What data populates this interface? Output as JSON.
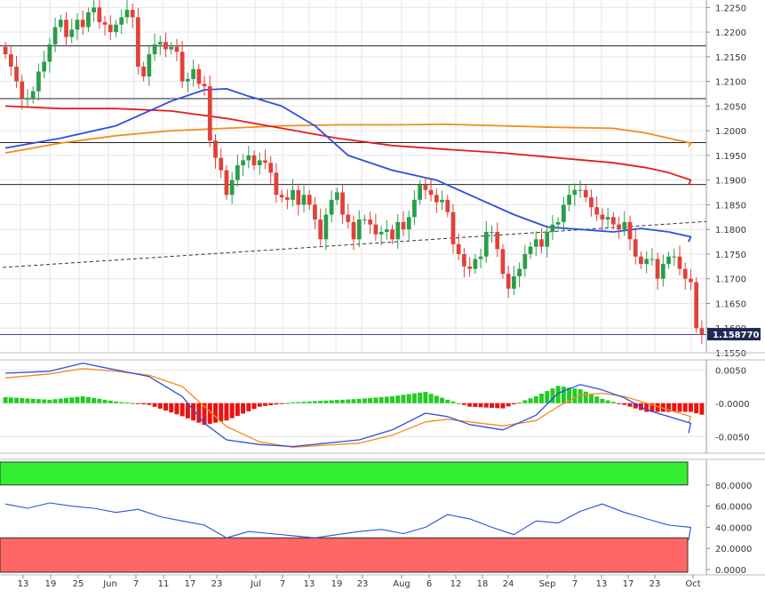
{
  "colors": {
    "bull": "#2a9d4a",
    "bear": "#e0413a",
    "sma_blue": "#2b4fe0",
    "sma_orange": "#f48c1d",
    "sma_red": "#e51c1c",
    "macd_blue": "#2b4fe0",
    "macd_signal": "#f48c1d",
    "hist_pos": "#22cc22",
    "hist_neg": "#ee1111",
    "rsi_line": "#2b4fe0",
    "ob_zone": "#33ee33",
    "os_zone": "#ff6666",
    "grid": "#e6e6e6"
  },
  "chart_data": [
    {
      "type": "candlestick",
      "price_axis": {
        "min": 1.155,
        "max": 1.2265,
        "ticks": [
          "1.2250",
          "1.2200",
          "1.2150",
          "1.2100",
          "1.2050",
          "1.2000",
          "1.1950",
          "1.1900",
          "1.1850",
          "1.1800",
          "1.1750",
          "1.1700",
          "1.1650",
          "1.1600",
          "1.1550"
        ]
      },
      "last_price": "1.158770",
      "horizontal_levels": [
        1.2172,
        1.2065,
        1.1976,
        1.1891,
        1.1587
      ],
      "trendline": {
        "x": [
          0,
          110
        ],
        "y": [
          1.1723,
          1.1816
        ],
        "style": "dashed"
      },
      "candles_close": [
        1.2155,
        1.213,
        1.21,
        1.2065,
        1.2065,
        1.208,
        1.212,
        1.214,
        1.2175,
        1.221,
        1.2225,
        1.219,
        1.2205,
        1.2225,
        1.221,
        1.224,
        1.225,
        1.222,
        1.2215,
        1.22,
        1.2215,
        1.223,
        1.2245,
        1.223,
        1.213,
        1.211,
        1.2155,
        1.2175,
        1.218,
        1.2165,
        1.217,
        1.216,
        1.21,
        1.2105,
        1.2125,
        1.2095,
        1.209,
        1.198,
        1.1945,
        1.192,
        1.187,
        1.19,
        1.193,
        1.194,
        1.195,
        1.193,
        1.194,
        1.1935,
        1.1915,
        1.187,
        1.1865,
        1.186,
        1.188,
        1.185,
        1.187,
        1.185,
        1.182,
        1.178,
        1.183,
        1.186,
        1.1875,
        1.183,
        1.1815,
        1.178,
        1.182,
        1.182,
        1.181,
        1.179,
        1.1795,
        1.18,
        1.178,
        1.1815,
        1.18,
        1.1825,
        1.186,
        1.189,
        1.188,
        1.187,
        1.1855,
        1.186,
        1.1835,
        1.177,
        1.175,
        1.1725,
        1.172,
        1.174,
        1.1745,
        1.1795,
        1.1795,
        1.176,
        1.171,
        1.168,
        1.1705,
        1.172,
        1.175,
        1.1765,
        1.178,
        1.1765,
        1.1795,
        1.181,
        1.1815,
        1.185,
        1.187,
        1.188,
        1.188,
        1.1865,
        1.1845,
        1.183,
        1.182,
        1.1825,
        1.181,
        1.18,
        1.1815,
        1.178,
        1.1745,
        1.173,
        1.174,
        1.174,
        1.17,
        1.173,
        1.1745,
        1.1745,
        1.172,
        1.17,
        1.1693,
        1.16,
        1.1587
      ],
      "candles_open": [
        1.217,
        1.2155,
        1.213,
        1.21,
        1.2065,
        1.2065,
        1.208,
        1.212,
        1.214,
        1.2175,
        1.221,
        1.2225,
        1.219,
        1.2205,
        1.2225,
        1.221,
        1.224,
        1.225,
        1.222,
        1.2215,
        1.22,
        1.2215,
        1.223,
        1.2245,
        1.223,
        1.213,
        1.211,
        1.2155,
        1.2175,
        1.218,
        1.2165,
        1.217,
        1.216,
        1.21,
        1.2105,
        1.2125,
        1.2095,
        1.209,
        1.198,
        1.1945,
        1.192,
        1.187,
        1.19,
        1.193,
        1.194,
        1.195,
        1.193,
        1.194,
        1.1935,
        1.1915,
        1.187,
        1.1865,
        1.186,
        1.188,
        1.185,
        1.187,
        1.185,
        1.182,
        1.178,
        1.183,
        1.186,
        1.1875,
        1.183,
        1.1815,
        1.178,
        1.182,
        1.182,
        1.181,
        1.179,
        1.1795,
        1.18,
        1.178,
        1.1815,
        1.18,
        1.1825,
        1.186,
        1.189,
        1.188,
        1.187,
        1.1855,
        1.186,
        1.1835,
        1.177,
        1.175,
        1.1725,
        1.172,
        1.174,
        1.1745,
        1.1795,
        1.1795,
        1.176,
        1.171,
        1.168,
        1.1705,
        1.172,
        1.175,
        1.1765,
        1.178,
        1.1765,
        1.1795,
        1.181,
        1.1815,
        1.185,
        1.187,
        1.188,
        1.188,
        1.1865,
        1.1845,
        1.183,
        1.182,
        1.1825,
        1.181,
        1.18,
        1.1815,
        1.178,
        1.1745,
        1.173,
        1.174,
        1.174,
        1.17,
        1.173,
        1.1745,
        1.1745,
        1.172,
        1.17,
        1.1693,
        1.16
      ],
      "sma_blue": {
        "x": [
          0,
          10,
          20,
          30,
          36,
          40,
          44,
          50,
          56,
          62,
          70,
          78,
          86,
          92,
          98,
          104,
          110,
          115,
          120,
          124,
          127
        ],
        "y": [
          1.1965,
          1.1985,
          1.201,
          1.206,
          1.2083,
          1.2085,
          1.207,
          1.205,
          1.201,
          1.195,
          1.192,
          1.19,
          1.186,
          1.183,
          1.1805,
          1.18,
          1.1795,
          1.1802,
          1.1795,
          1.1785,
          1.1775
        ]
      },
      "sma_orange": {
        "x": [
          0,
          10,
          20,
          30,
          40,
          50,
          60,
          70,
          80,
          90,
          100,
          110,
          116,
          120,
          124,
          127
        ],
        "y": [
          1.1955,
          1.1975,
          1.199,
          1.2,
          1.2005,
          1.201,
          1.2012,
          1.2012,
          1.2013,
          1.201,
          1.2007,
          1.2005,
          1.1995,
          1.1985,
          1.1975,
          1.1968
        ]
      },
      "sma_red": {
        "x": [
          0,
          10,
          20,
          30,
          40,
          50,
          60,
          70,
          80,
          90,
          100,
          110,
          116,
          120,
          124,
          127
        ],
        "y": [
          1.205,
          1.2045,
          1.2045,
          1.204,
          1.2025,
          1.2005,
          1.1985,
          1.197,
          1.1962,
          1.1955,
          1.1945,
          1.1935,
          1.1925,
          1.1915,
          1.19,
          1.189
        ]
      }
    },
    {
      "type": "macd",
      "axis": {
        "min": -0.0075,
        "max": 0.0065,
        "ticks": [
          "0.0050",
          "-0.0000",
          "-0.0050"
        ]
      },
      "macd": {
        "x": [
          0,
          8,
          14,
          20,
          26,
          32,
          36,
          40,
          46,
          52,
          58,
          64,
          70,
          76,
          80,
          84,
          90,
          96,
          100,
          104,
          108,
          112,
          116,
          120,
          124,
          127
        ],
        "y": [
          0.0045,
          0.0048,
          0.006,
          0.005,
          0.004,
          0.001,
          -0.003,
          -0.0055,
          -0.0062,
          -0.0065,
          -0.006,
          -0.0055,
          -0.004,
          -0.0015,
          -0.002,
          -0.0032,
          -0.004,
          -0.0018,
          0.0015,
          0.0028,
          0.002,
          0.0008,
          -0.001,
          -0.002,
          -0.003,
          -0.0045
        ]
      },
      "signal": {
        "x": [
          0,
          8,
          14,
          20,
          26,
          32,
          36,
          40,
          46,
          52,
          58,
          64,
          70,
          76,
          80,
          84,
          90,
          96,
          100,
          104,
          108,
          112,
          116,
          120,
          124,
          127
        ],
        "y": [
          0.0038,
          0.0044,
          0.0052,
          0.0048,
          0.0042,
          0.0025,
          -0.0005,
          -0.0035,
          -0.0058,
          -0.0066,
          -0.0063,
          -0.006,
          -0.0048,
          -0.0028,
          -0.0024,
          -0.0028,
          -0.0034,
          -0.0026,
          -0.0005,
          0.0012,
          0.0015,
          0.001,
          0.0,
          -0.001,
          -0.002,
          -0.003
        ]
      },
      "hist_x": [
        0,
        127
      ],
      "hist_gain": 0.65
    },
    {
      "type": "rsi",
      "axis": {
        "min": 0,
        "max": 100,
        "ticks": [
          "80.0000",
          "60.0000",
          "40.0000",
          "20.0000",
          "0.0000"
        ]
      },
      "overbought": 80,
      "oversold": 30,
      "rsi": {
        "x": [
          0,
          4,
          8,
          12,
          16,
          20,
          24,
          28,
          32,
          36,
          40,
          44,
          48,
          52,
          56,
          60,
          64,
          68,
          72,
          76,
          80,
          84,
          88,
          92,
          96,
          100,
          104,
          108,
          112,
          116,
          120,
          124,
          127
        ],
        "y": [
          62,
          58,
          63,
          60,
          58,
          54,
          57,
          50,
          46,
          42,
          30,
          36,
          34,
          32,
          30,
          33,
          36,
          38,
          34,
          40,
          52,
          48,
          40,
          33,
          46,
          44,
          55,
          62,
          54,
          48,
          42,
          40,
          28
        ]
      },
      "x_labels": [
        "13",
        "19",
        "25",
        "Jun",
        "7",
        "11",
        "17",
        "23",
        "Jul",
        "7",
        "13",
        "19",
        "23",
        "Aug",
        "6",
        "12",
        "18",
        "24",
        "Sep",
        "7",
        "13",
        "17",
        "23",
        "Oct"
      ]
    }
  ]
}
